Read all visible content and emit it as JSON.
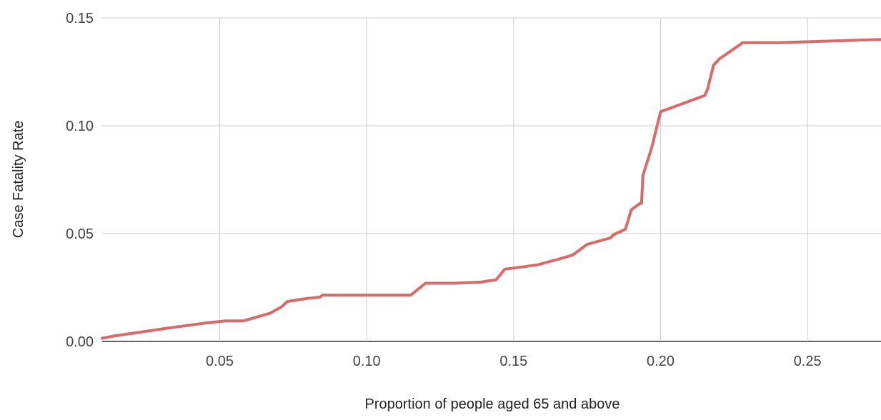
{
  "chart_data": {
    "type": "line",
    "title": "",
    "xlabel": "Proportion of people aged 65 and above",
    "ylabel": "Case Fatality Rate",
    "xlim": [
      0.01,
      0.275
    ],
    "ylim": [
      0.0,
      0.15
    ],
    "x_ticks": [
      0.05,
      0.1,
      0.15,
      0.2,
      0.25
    ],
    "x_tick_labels": [
      "0.05",
      "0.10",
      "0.15",
      "0.20",
      "0.25"
    ],
    "y_ticks": [
      0.0,
      0.05,
      0.1,
      0.15
    ],
    "y_tick_labels": [
      "0.00",
      "0.05",
      "0.10",
      "0.15"
    ],
    "grid": true,
    "legend": "none",
    "series": [
      {
        "color": "#d96a6a",
        "x": [
          0.01,
          0.014,
          0.034,
          0.045,
          0.052,
          0.058,
          0.063,
          0.067,
          0.071,
          0.073,
          0.08,
          0.084,
          0.085,
          0.09,
          0.11,
          0.115,
          0.12,
          0.13,
          0.139,
          0.141,
          0.144,
          0.147,
          0.15,
          0.158,
          0.165,
          0.17,
          0.175,
          0.183,
          0.184,
          0.188,
          0.19,
          0.193,
          0.1935,
          0.194,
          0.197,
          0.2,
          0.215,
          0.216,
          0.218,
          0.22,
          0.228,
          0.24,
          0.275
        ],
        "y": [
          0.0015,
          0.0025,
          0.0065,
          0.0085,
          0.0095,
          0.0095,
          0.0115,
          0.013,
          0.016,
          0.0185,
          0.02,
          0.0205,
          0.0215,
          0.0215,
          0.0215,
          0.0215,
          0.027,
          0.027,
          0.0275,
          0.028,
          0.0285,
          0.0335,
          0.034,
          0.0355,
          0.038,
          0.04,
          0.045,
          0.048,
          0.0495,
          0.052,
          0.061,
          0.064,
          0.064,
          0.077,
          0.09,
          0.1065,
          0.114,
          0.117,
          0.128,
          0.131,
          0.1385,
          0.1385,
          0.14
        ]
      }
    ]
  }
}
